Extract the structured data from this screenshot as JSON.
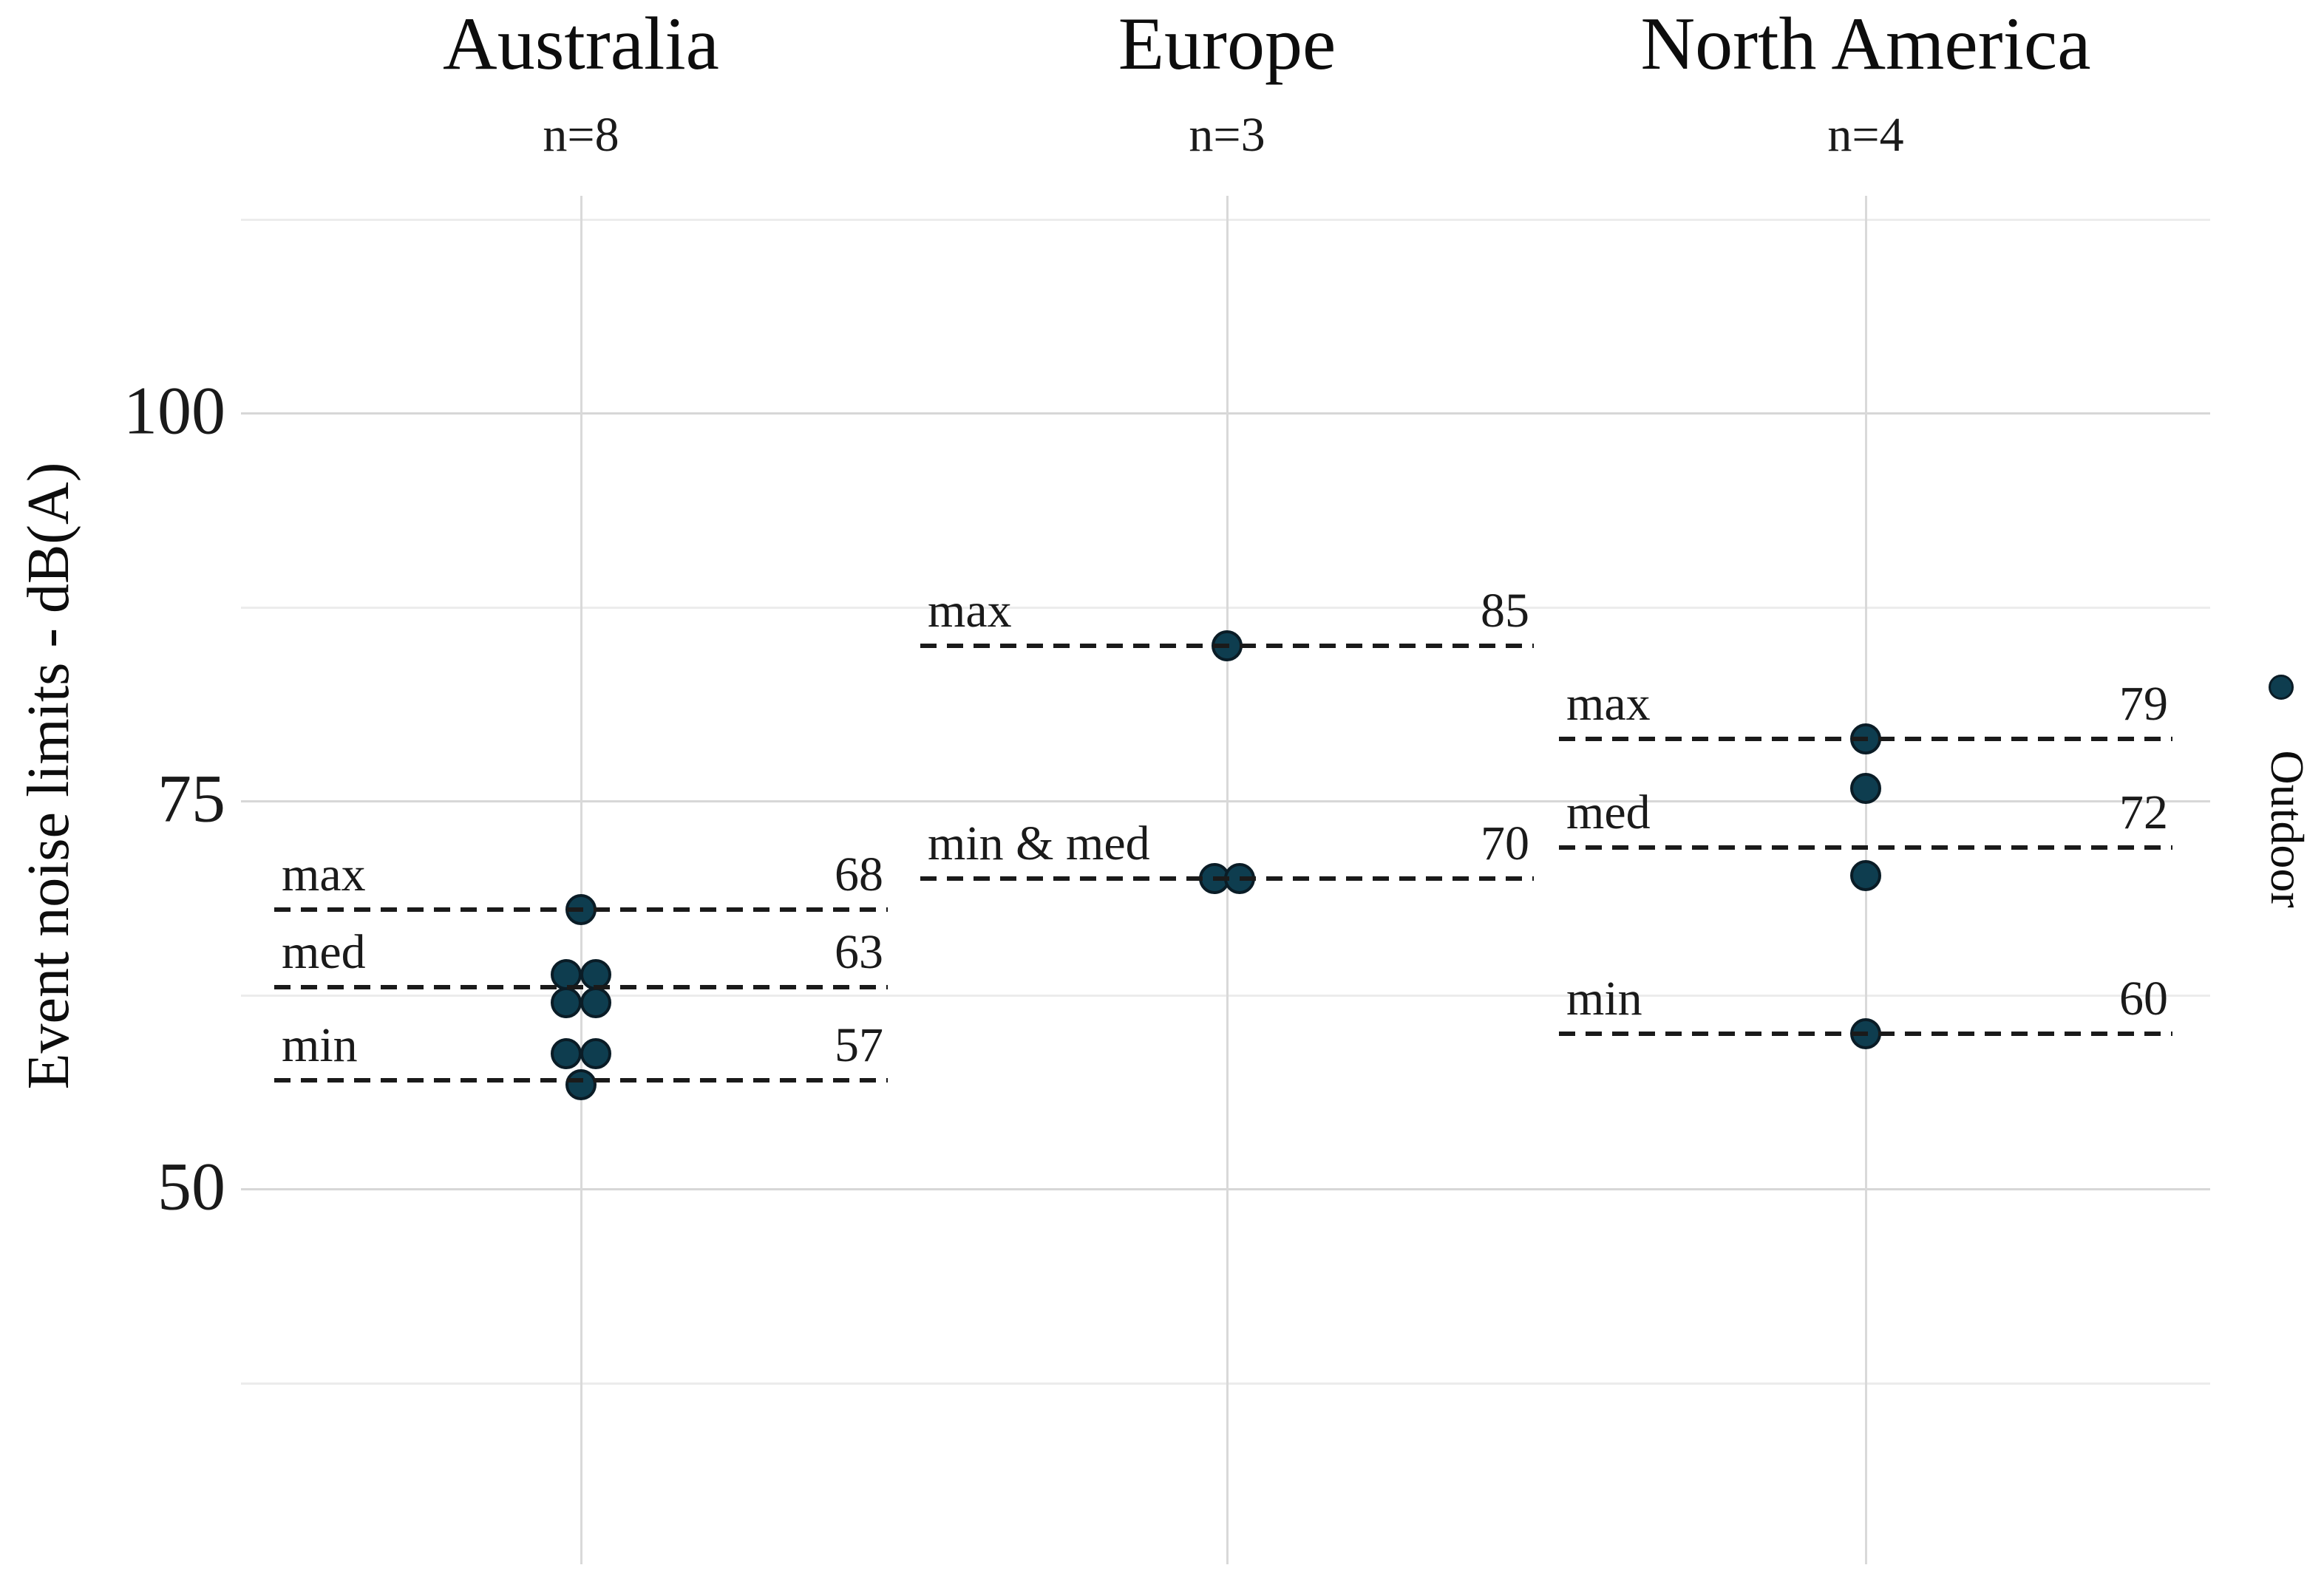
{
  "chart_data": {
    "type": "scatter",
    "title": "",
    "ylabel": "Event noise limits - dB(A)",
    "unit": "dB(A)",
    "ylim": [
      26,
      114
    ],
    "grid": "on",
    "legend": {
      "label": "Outdoor",
      "position": "right",
      "marker": "dot"
    },
    "yticks": [
      {
        "value": 100,
        "label": "100"
      },
      {
        "value": 75,
        "label": "75"
      },
      {
        "value": 50,
        "label": "50"
      }
    ],
    "minor_gridlines": [
      112.5,
      87.5,
      62.5,
      37.5
    ],
    "groups": [
      {
        "name": "Australia",
        "n": 8,
        "n_label": "n=8",
        "stats": [
          {
            "label": "max",
            "value": 68
          },
          {
            "label": "med",
            "value": 63
          },
          {
            "label": "min",
            "value": 57
          }
        ],
        "points": [
          {
            "value": 68,
            "dx": 0
          },
          {
            "value": 63.8,
            "dx": -20
          },
          {
            "value": 63.8,
            "dx": 20
          },
          {
            "value": 62.0,
            "dx": -20
          },
          {
            "value": 62.0,
            "dx": 20
          },
          {
            "value": 58.7,
            "dx": -20
          },
          {
            "value": 58.7,
            "dx": 20
          },
          {
            "value": 56.7,
            "dx": 0
          }
        ]
      },
      {
        "name": "Europe",
        "n": 3,
        "n_label": "n=3",
        "stats": [
          {
            "label": "max",
            "value": 85
          },
          {
            "label": "min & med",
            "value": 70
          }
        ],
        "points": [
          {
            "value": 85,
            "dx": 0
          },
          {
            "value": 70,
            "dx": -17
          },
          {
            "value": 70,
            "dx": 17
          }
        ]
      },
      {
        "name": "North America",
        "n": 4,
        "n_label": "n=4",
        "stats": [
          {
            "label": "max",
            "value": 79
          },
          {
            "label": "med",
            "value": 72
          },
          {
            "label": "min",
            "value": 60
          }
        ],
        "points": [
          {
            "value": 79,
            "dx": 0
          },
          {
            "value": 75.8,
            "dx": 0
          },
          {
            "value": 70.2,
            "dx": 0
          },
          {
            "value": 60,
            "dx": 0
          }
        ]
      }
    ],
    "colors": {
      "point_fill": "#0e3d4f",
      "point_stroke": "#0a1c26",
      "stat_line": "#1a1a1a",
      "grid_major": "#d7d7d7",
      "grid_minor": "#ececec",
      "text": "#111111"
    }
  }
}
